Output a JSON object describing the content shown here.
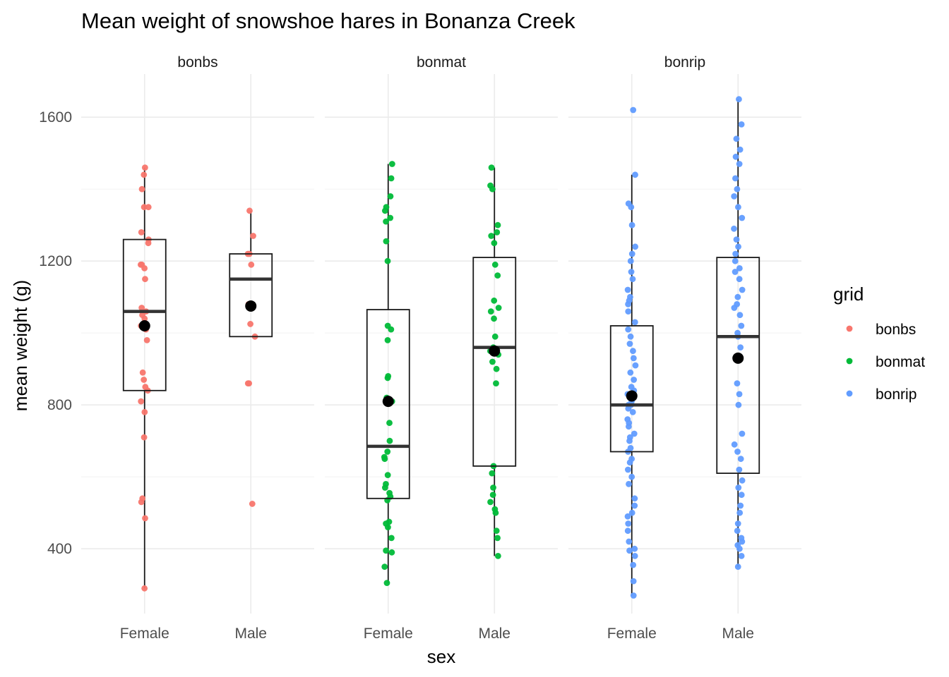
{
  "chart_data": {
    "type": "box",
    "title": "Mean weight of snowshoe hares in Bonanza Creek",
    "xlabel": "sex",
    "ylabel": "mean weight (g)",
    "categories": [
      "Female",
      "Male"
    ],
    "facets": [
      "bonbs",
      "bonmat",
      "bonrip"
    ],
    "ylim": [
      220,
      1720
    ],
    "yticks": [
      400,
      800,
      1200,
      1600
    ],
    "grid": true,
    "legend": {
      "title": "grid",
      "position": "right",
      "entries": [
        {
          "label": "bonbs",
          "color": "#F8766D"
        },
        {
          "label": "bonmat",
          "color": "#00BA38"
        },
        {
          "label": "bonrip",
          "color": "#619CFF"
        }
      ]
    },
    "series": [
      {
        "facet": "bonbs",
        "sex": "Female",
        "color": "#F8766D",
        "box": {
          "min": 290,
          "q1": 840,
          "median": 1060,
          "q3": 1260,
          "max": 1460
        },
        "mean": 1020,
        "points": [
          290,
          485,
          530,
          540,
          710,
          780,
          810,
          840,
          850,
          870,
          890,
          980,
          1010,
          1020,
          1040,
          1050,
          1060,
          1070,
          1150,
          1180,
          1190,
          1190,
          1250,
          1260,
          1280,
          1350,
          1350,
          1400,
          1440,
          1460
        ]
      },
      {
        "facet": "bonbs",
        "sex": "Male",
        "color": "#F8766D",
        "box": {
          "min": 990,
          "q1": 990,
          "median": 1150,
          "q3": 1220,
          "max": 1340
        },
        "mean": 1075,
        "points": [
          525,
          860,
          860,
          990,
          1025,
          1080,
          1190,
          1220,
          1220,
          1270,
          1340
        ]
      },
      {
        "facet": "bonmat",
        "sex": "Female",
        "color": "#00BA38",
        "box": {
          "min": 305,
          "q1": 540,
          "median": 685,
          "q3": 1065,
          "max": 1470
        },
        "mean": 810,
        "points": [
          305,
          350,
          390,
          395,
          430,
          460,
          470,
          475,
          535,
          545,
          555,
          570,
          580,
          605,
          650,
          655,
          670,
          700,
          750,
          810,
          820,
          875,
          880,
          980,
          1010,
          1020,
          1200,
          1255,
          1310,
          1320,
          1340,
          1350,
          1380,
          1430,
          1470
        ]
      },
      {
        "facet": "bonmat",
        "sex": "Male",
        "color": "#00BA38",
        "box": {
          "min": 380,
          "q1": 630,
          "median": 960,
          "q3": 1210,
          "max": 1460
        },
        "mean": 950,
        "points": [
          380,
          430,
          450,
          500,
          510,
          530,
          550,
          570,
          610,
          630,
          860,
          900,
          920,
          940,
          950,
          960,
          990,
          1040,
          1060,
          1070,
          1090,
          1160,
          1190,
          1250,
          1270,
          1280,
          1300,
          1400,
          1410,
          1460
        ]
      },
      {
        "facet": "bonrip",
        "sex": "Female",
        "color": "#619CFF",
        "box": {
          "min": 270,
          "q1": 670,
          "median": 800,
          "q3": 1020,
          "max": 1440
        },
        "mean": 825,
        "points": [
          270,
          310,
          355,
          380,
          395,
          400,
          420,
          450,
          470,
          490,
          500,
          520,
          540,
          580,
          600,
          620,
          640,
          650,
          670,
          680,
          700,
          710,
          720,
          740,
          750,
          760,
          780,
          790,
          800,
          800,
          810,
          820,
          830,
          840,
          850,
          870,
          890,
          910,
          930,
          950,
          970,
          990,
          1010,
          1030,
          1060,
          1080,
          1090,
          1100,
          1120,
          1150,
          1170,
          1200,
          1220,
          1240,
          1300,
          1350,
          1360,
          1440,
          1620
        ]
      },
      {
        "facet": "bonrip",
        "sex": "Male",
        "color": "#619CFF",
        "box": {
          "min": 350,
          "q1": 610,
          "median": 990,
          "q3": 1210,
          "max": 1650
        },
        "mean": 930,
        "points": [
          350,
          380,
          400,
          410,
          420,
          430,
          450,
          470,
          500,
          520,
          550,
          570,
          590,
          620,
          650,
          670,
          690,
          720,
          800,
          830,
          860,
          930,
          960,
          990,
          1000,
          1020,
          1050,
          1070,
          1080,
          1100,
          1120,
          1150,
          1170,
          1180,
          1200,
          1220,
          1240,
          1260,
          1290,
          1320,
          1350,
          1380,
          1400,
          1430,
          1470,
          1490,
          1510,
          1540,
          1580,
          1650
        ]
      }
    ]
  }
}
